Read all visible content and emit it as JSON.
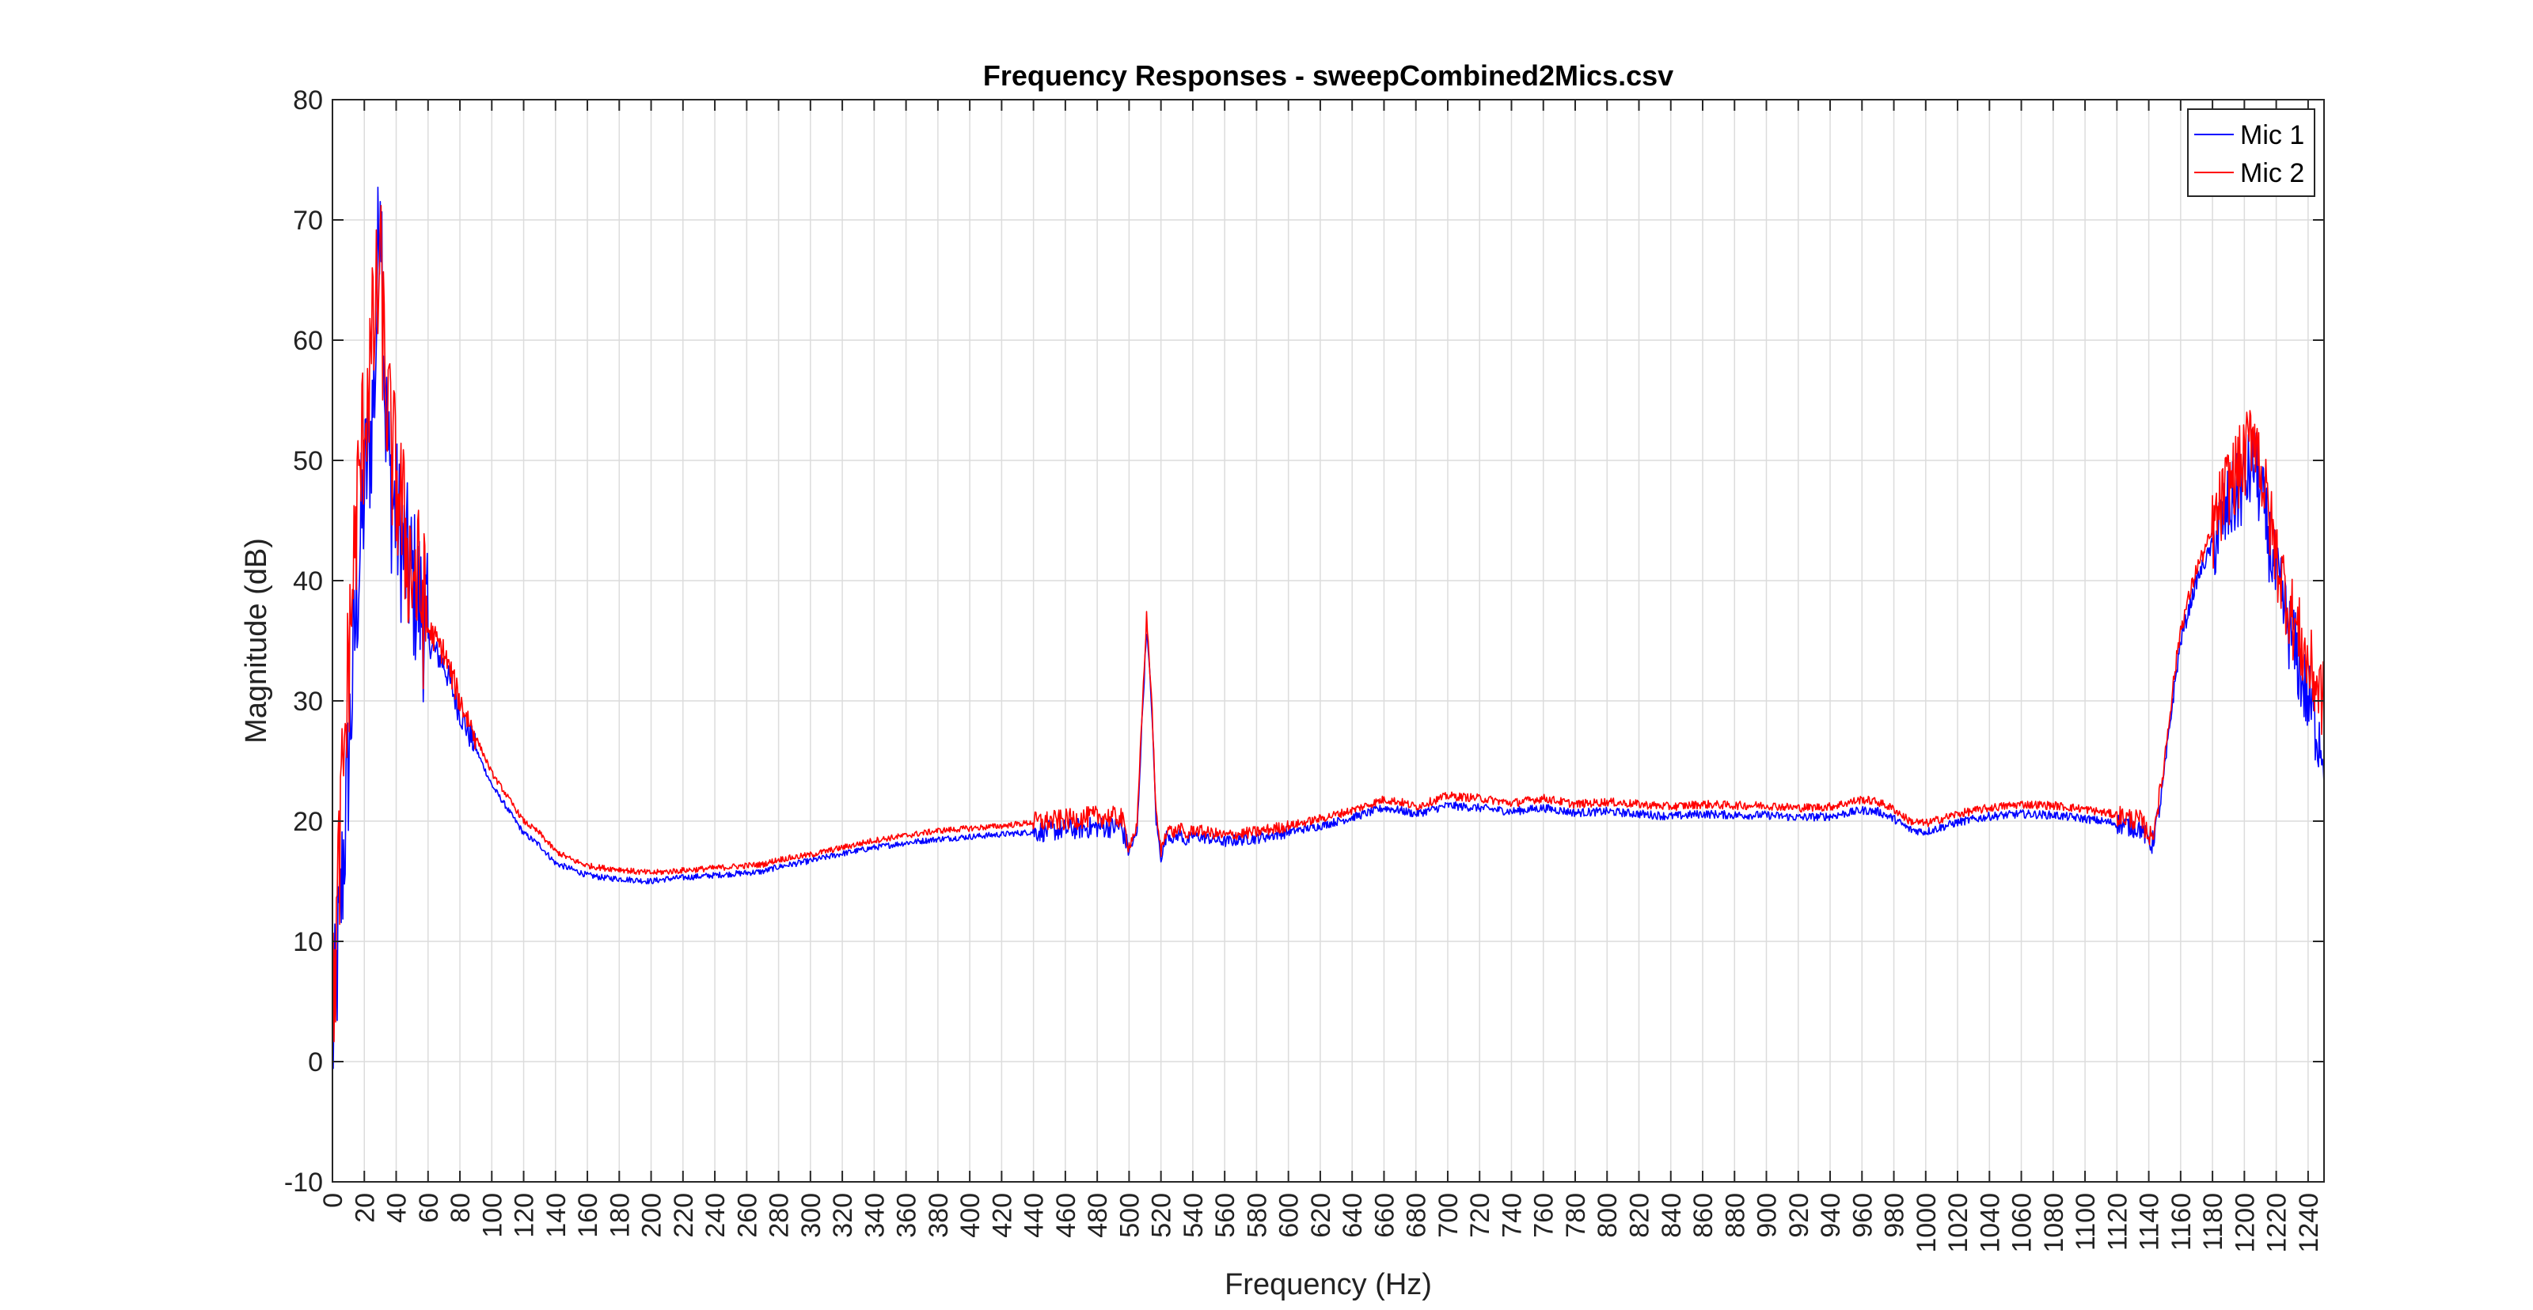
{
  "chart_data": {
    "type": "line",
    "title": "Frequency Responses - sweepCombined2Mics.csv",
    "xlabel": "Frequency (Hz)",
    "ylabel": "Magnitude (dB)",
    "xlim": [
      0,
      1250
    ],
    "ylim": [
      -10,
      80
    ],
    "xticks": [
      0,
      20,
      40,
      60,
      80,
      100,
      120,
      140,
      160,
      180,
      200,
      220,
      240,
      260,
      280,
      300,
      320,
      340,
      360,
      380,
      400,
      420,
      440,
      460,
      480,
      500,
      520,
      540,
      560,
      580,
      600,
      620,
      640,
      660,
      680,
      700,
      720,
      740,
      760,
      780,
      800,
      820,
      840,
      860,
      880,
      900,
      920,
      940,
      960,
      980,
      1000,
      1020,
      1040,
      1060,
      1080,
      1100,
      1120,
      1140,
      1160,
      1180,
      1200,
      1220,
      1240
    ],
    "yticks": [
      -10,
      0,
      10,
      20,
      30,
      40,
      50,
      60,
      70,
      80
    ],
    "grid": true,
    "legend": "top-right",
    "series": [
      {
        "name": "Mic 1",
        "color": "#0000ff",
        "x": [
          0,
          3,
          6,
          9,
          12,
          15,
          18,
          21,
          24,
          27,
          30,
          33,
          36,
          39,
          42,
          45,
          50,
          55,
          60,
          65,
          70,
          80,
          90,
          100,
          110,
          120,
          130,
          140,
          150,
          160,
          170,
          180,
          190,
          200,
          210,
          220,
          240,
          260,
          270,
          280,
          300,
          320,
          340,
          360,
          380,
          400,
          420,
          440,
          460,
          480,
          495,
          500,
          505,
          508,
          511,
          514,
          517,
          520,
          524,
          528,
          532,
          536,
          540,
          560,
          580,
          600,
          620,
          640,
          660,
          670,
          680,
          700,
          720,
          740,
          760,
          780,
          800,
          820,
          840,
          860,
          880,
          900,
          920,
          940,
          960,
          970,
          980,
          990,
          1000,
          1020,
          1040,
          1060,
          1080,
          1100,
          1120,
          1135,
          1142,
          1148,
          1155,
          1160,
          1170,
          1180,
          1190,
          1200,
          1206,
          1212,
          1220,
          1230,
          1240,
          1250
        ],
        "y": [
          1,
          8,
          15,
          22,
          30,
          38,
          44,
          49,
          52,
          58,
          75,
          55,
          48,
          46,
          44,
          42,
          40,
          38,
          35,
          34,
          33,
          29,
          26,
          23,
          21,
          19,
          18,
          16.5,
          16,
          15.5,
          15.3,
          15.2,
          15.1,
          15.0,
          15.2,
          15.3,
          15.5,
          15.7,
          15.8,
          16.2,
          16.7,
          17.3,
          17.8,
          18.2,
          18.5,
          18.7,
          18.9,
          19.1,
          19.3,
          19.5,
          19.5,
          17.5,
          19,
          28,
          36,
          30,
          20,
          17,
          19,
          18.5,
          19,
          18.2,
          18.8,
          18.3,
          18.6,
          19.1,
          19.6,
          20.3,
          21.1,
          20.9,
          20.6,
          21.3,
          21.1,
          20.8,
          21.1,
          20.7,
          20.8,
          20.6,
          20.4,
          20.6,
          20.5,
          20.5,
          20.3,
          20.4,
          20.9,
          20.8,
          20.2,
          19.3,
          19.1,
          19.9,
          20.4,
          20.6,
          20.5,
          20.2,
          19.8,
          19.4,
          18,
          22,
          30,
          35,
          40,
          43,
          46,
          48,
          50,
          46,
          40,
          35,
          30,
          26
        ]
      },
      {
        "name": "Mic 2",
        "color": "#ff0000",
        "x": [
          0,
          3,
          6,
          9,
          12,
          15,
          18,
          21,
          24,
          27,
          30,
          33,
          36,
          39,
          42,
          45,
          50,
          55,
          60,
          65,
          70,
          80,
          90,
          100,
          110,
          120,
          130,
          140,
          150,
          160,
          170,
          180,
          190,
          200,
          210,
          220,
          240,
          260,
          270,
          280,
          300,
          320,
          340,
          360,
          380,
          400,
          420,
          440,
          460,
          480,
          495,
          500,
          505,
          508,
          511,
          514,
          517,
          520,
          524,
          528,
          532,
          536,
          540,
          560,
          580,
          600,
          620,
          640,
          660,
          670,
          680,
          700,
          720,
          740,
          760,
          780,
          800,
          820,
          840,
          860,
          880,
          900,
          920,
          940,
          960,
          970,
          980,
          990,
          1000,
          1020,
          1040,
          1060,
          1080,
          1100,
          1120,
          1135,
          1142,
          1148,
          1155,
          1160,
          1170,
          1180,
          1190,
          1200,
          1206,
          1212,
          1220,
          1230,
          1240,
          1250
        ],
        "y": [
          3,
          12,
          22,
          30,
          38,
          45,
          50,
          55,
          58,
          62,
          66,
          57,
          52,
          49,
          47,
          44,
          41,
          39,
          36,
          35,
          34,
          30,
          27,
          24,
          22,
          20,
          19,
          17.5,
          16.8,
          16.3,
          16.1,
          16.0,
          15.8,
          15.7,
          15.8,
          15.9,
          16.1,
          16.3,
          16.4,
          16.8,
          17.2,
          17.8,
          18.4,
          18.8,
          19.2,
          19.4,
          19.6,
          19.9,
          20.1,
          20.4,
          20.3,
          18,
          19.5,
          28.5,
          37,
          30.5,
          20.5,
          17.5,
          19.5,
          19,
          19.5,
          18.7,
          19.3,
          18.8,
          19.1,
          19.6,
          20.2,
          20.9,
          21.8,
          21.6,
          21.2,
          22.1,
          21.9,
          21.5,
          21.9,
          21.4,
          21.6,
          21.4,
          21.2,
          21.4,
          21.3,
          21.3,
          21.1,
          21.2,
          21.8,
          21.6,
          21.0,
          20.0,
          19.8,
          20.6,
          21.1,
          21.4,
          21.3,
          21.0,
          20.5,
          20.0,
          18.5,
          23,
          31,
          36,
          41,
          44,
          48,
          50,
          53,
          48,
          42,
          37,
          33,
          30
        ]
      }
    ]
  }
}
